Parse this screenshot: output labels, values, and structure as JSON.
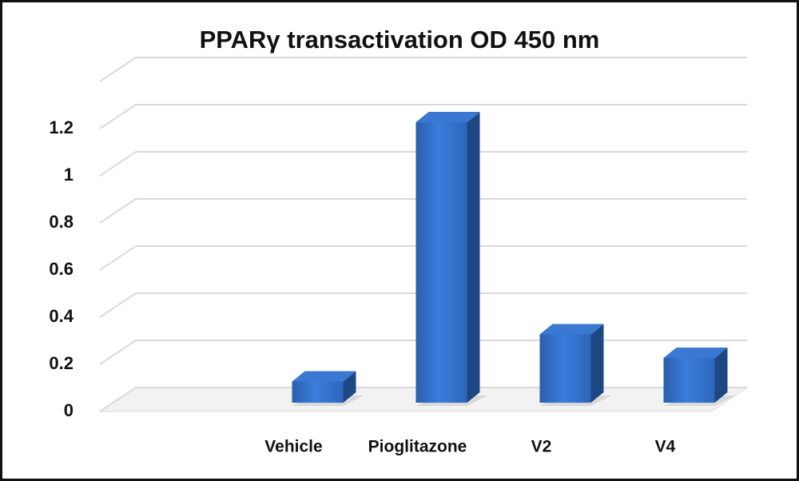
{
  "chart_data": {
    "type": "bar",
    "title": "PPARγ transactivation  OD 450 nm",
    "categories": [
      null,
      "Vehicle",
      "Pioglitazone",
      "V2",
      "V4"
    ],
    "values": [
      null,
      0.1,
      1.2,
      0.3,
      0.2
    ],
    "color": "#2e6bc4",
    "ylim": [
      0,
      1.4
    ],
    "yticks": [
      0,
      0.2,
      0.4,
      0.6,
      0.8,
      1,
      1.2
    ],
    "grid": true
  }
}
